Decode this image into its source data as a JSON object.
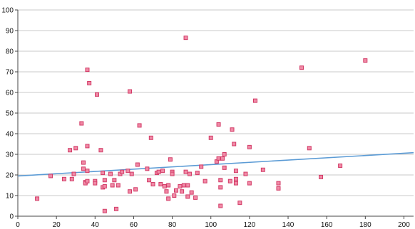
{
  "chart_data": {
    "type": "scatter",
    "title": "",
    "xlabel": "",
    "ylabel": "",
    "xlim": [
      0,
      205
    ],
    "ylim": [
      0,
      100
    ],
    "x_ticks": [
      0,
      20,
      40,
      60,
      80,
      100,
      120,
      140,
      160,
      180,
      200
    ],
    "y_ticks": [
      0,
      10,
      20,
      30,
      40,
      50,
      60,
      70,
      80,
      90,
      100
    ],
    "grid": "horizontal",
    "colors": {
      "marker_fill": "#f08aa6",
      "marker_stroke": "#d23a66",
      "fit_line": "#5b9bd5",
      "grid": "#c8c8c8",
      "axis": "#444444"
    },
    "fit_line": {
      "x": [
        0,
        205
      ],
      "y": [
        19.5,
        30.8
      ]
    },
    "points": [
      [
        10,
        8.5
      ],
      [
        17,
        19.5
      ],
      [
        24,
        18
      ],
      [
        27,
        32
      ],
      [
        28,
        18
      ],
      [
        29,
        20.5
      ],
      [
        30,
        33
      ],
      [
        33,
        45
      ],
      [
        34,
        26
      ],
      [
        34,
        23
      ],
      [
        35,
        16.5
      ],
      [
        35,
        16
      ],
      [
        36,
        22
      ],
      [
        36,
        34
      ],
      [
        36,
        71
      ],
      [
        36,
        17
      ],
      [
        37,
        64.5
      ],
      [
        40,
        17
      ],
      [
        40,
        16
      ],
      [
        41,
        59
      ],
      [
        43,
        32
      ],
      [
        44,
        21
      ],
      [
        44,
        14
      ],
      [
        45,
        14.5
      ],
      [
        45,
        2.5
      ],
      [
        45,
        17.5
      ],
      [
        48,
        20.5
      ],
      [
        49,
        15
      ],
      [
        50,
        17.5
      ],
      [
        51,
        3.5
      ],
      [
        52,
        15
      ],
      [
        53,
        20.5
      ],
      [
        54,
        21.5
      ],
      [
        57,
        22
      ],
      [
        58,
        60.5
      ],
      [
        58,
        12
      ],
      [
        59,
        20.5
      ],
      [
        61,
        13
      ],
      [
        62,
        25
      ],
      [
        63,
        44
      ],
      [
        67,
        23
      ],
      [
        68,
        17.5
      ],
      [
        69,
        38
      ],
      [
        70,
        15.5
      ],
      [
        72,
        21
      ],
      [
        73,
        21.5
      ],
      [
        74,
        15.5
      ],
      [
        75,
        22
      ],
      [
        76,
        14.5
      ],
      [
        77,
        12
      ],
      [
        78,
        15
      ],
      [
        78,
        8.5
      ],
      [
        79,
        27.5
      ],
      [
        80,
        21.5
      ],
      [
        80,
        20.5
      ],
      [
        81,
        10
      ],
      [
        82,
        12.5
      ],
      [
        84,
        14.5
      ],
      [
        85,
        12
      ],
      [
        86,
        15
      ],
      [
        87,
        21.5
      ],
      [
        87,
        86.5
      ],
      [
        88,
        15
      ],
      [
        88,
        9.5
      ],
      [
        89,
        20.5
      ],
      [
        90,
        11.5
      ],
      [
        92,
        9
      ],
      [
        93,
        21
      ],
      [
        95,
        24
      ],
      [
        97,
        17
      ],
      [
        100,
        38
      ],
      [
        103,
        26.5
      ],
      [
        104,
        28
      ],
      [
        104,
        44.5
      ],
      [
        105,
        17.5
      ],
      [
        105,
        14
      ],
      [
        105,
        5
      ],
      [
        106,
        28
      ],
      [
        107,
        30
      ],
      [
        107,
        23.5
      ],
      [
        110,
        17
      ],
      [
        111,
        42
      ],
      [
        112,
        35
      ],
      [
        113,
        18
      ],
      [
        113,
        22
      ],
      [
        113,
        16
      ],
      [
        115,
        6.5
      ],
      [
        118,
        20.5
      ],
      [
        120,
        33.5
      ],
      [
        120,
        16
      ],
      [
        123,
        56
      ],
      [
        127,
        22.5
      ],
      [
        135,
        16
      ],
      [
        135,
        13.5
      ],
      [
        147,
        72
      ],
      [
        151,
        33
      ],
      [
        157,
        19
      ],
      [
        167,
        24.5
      ],
      [
        180,
        75.5
      ]
    ]
  }
}
